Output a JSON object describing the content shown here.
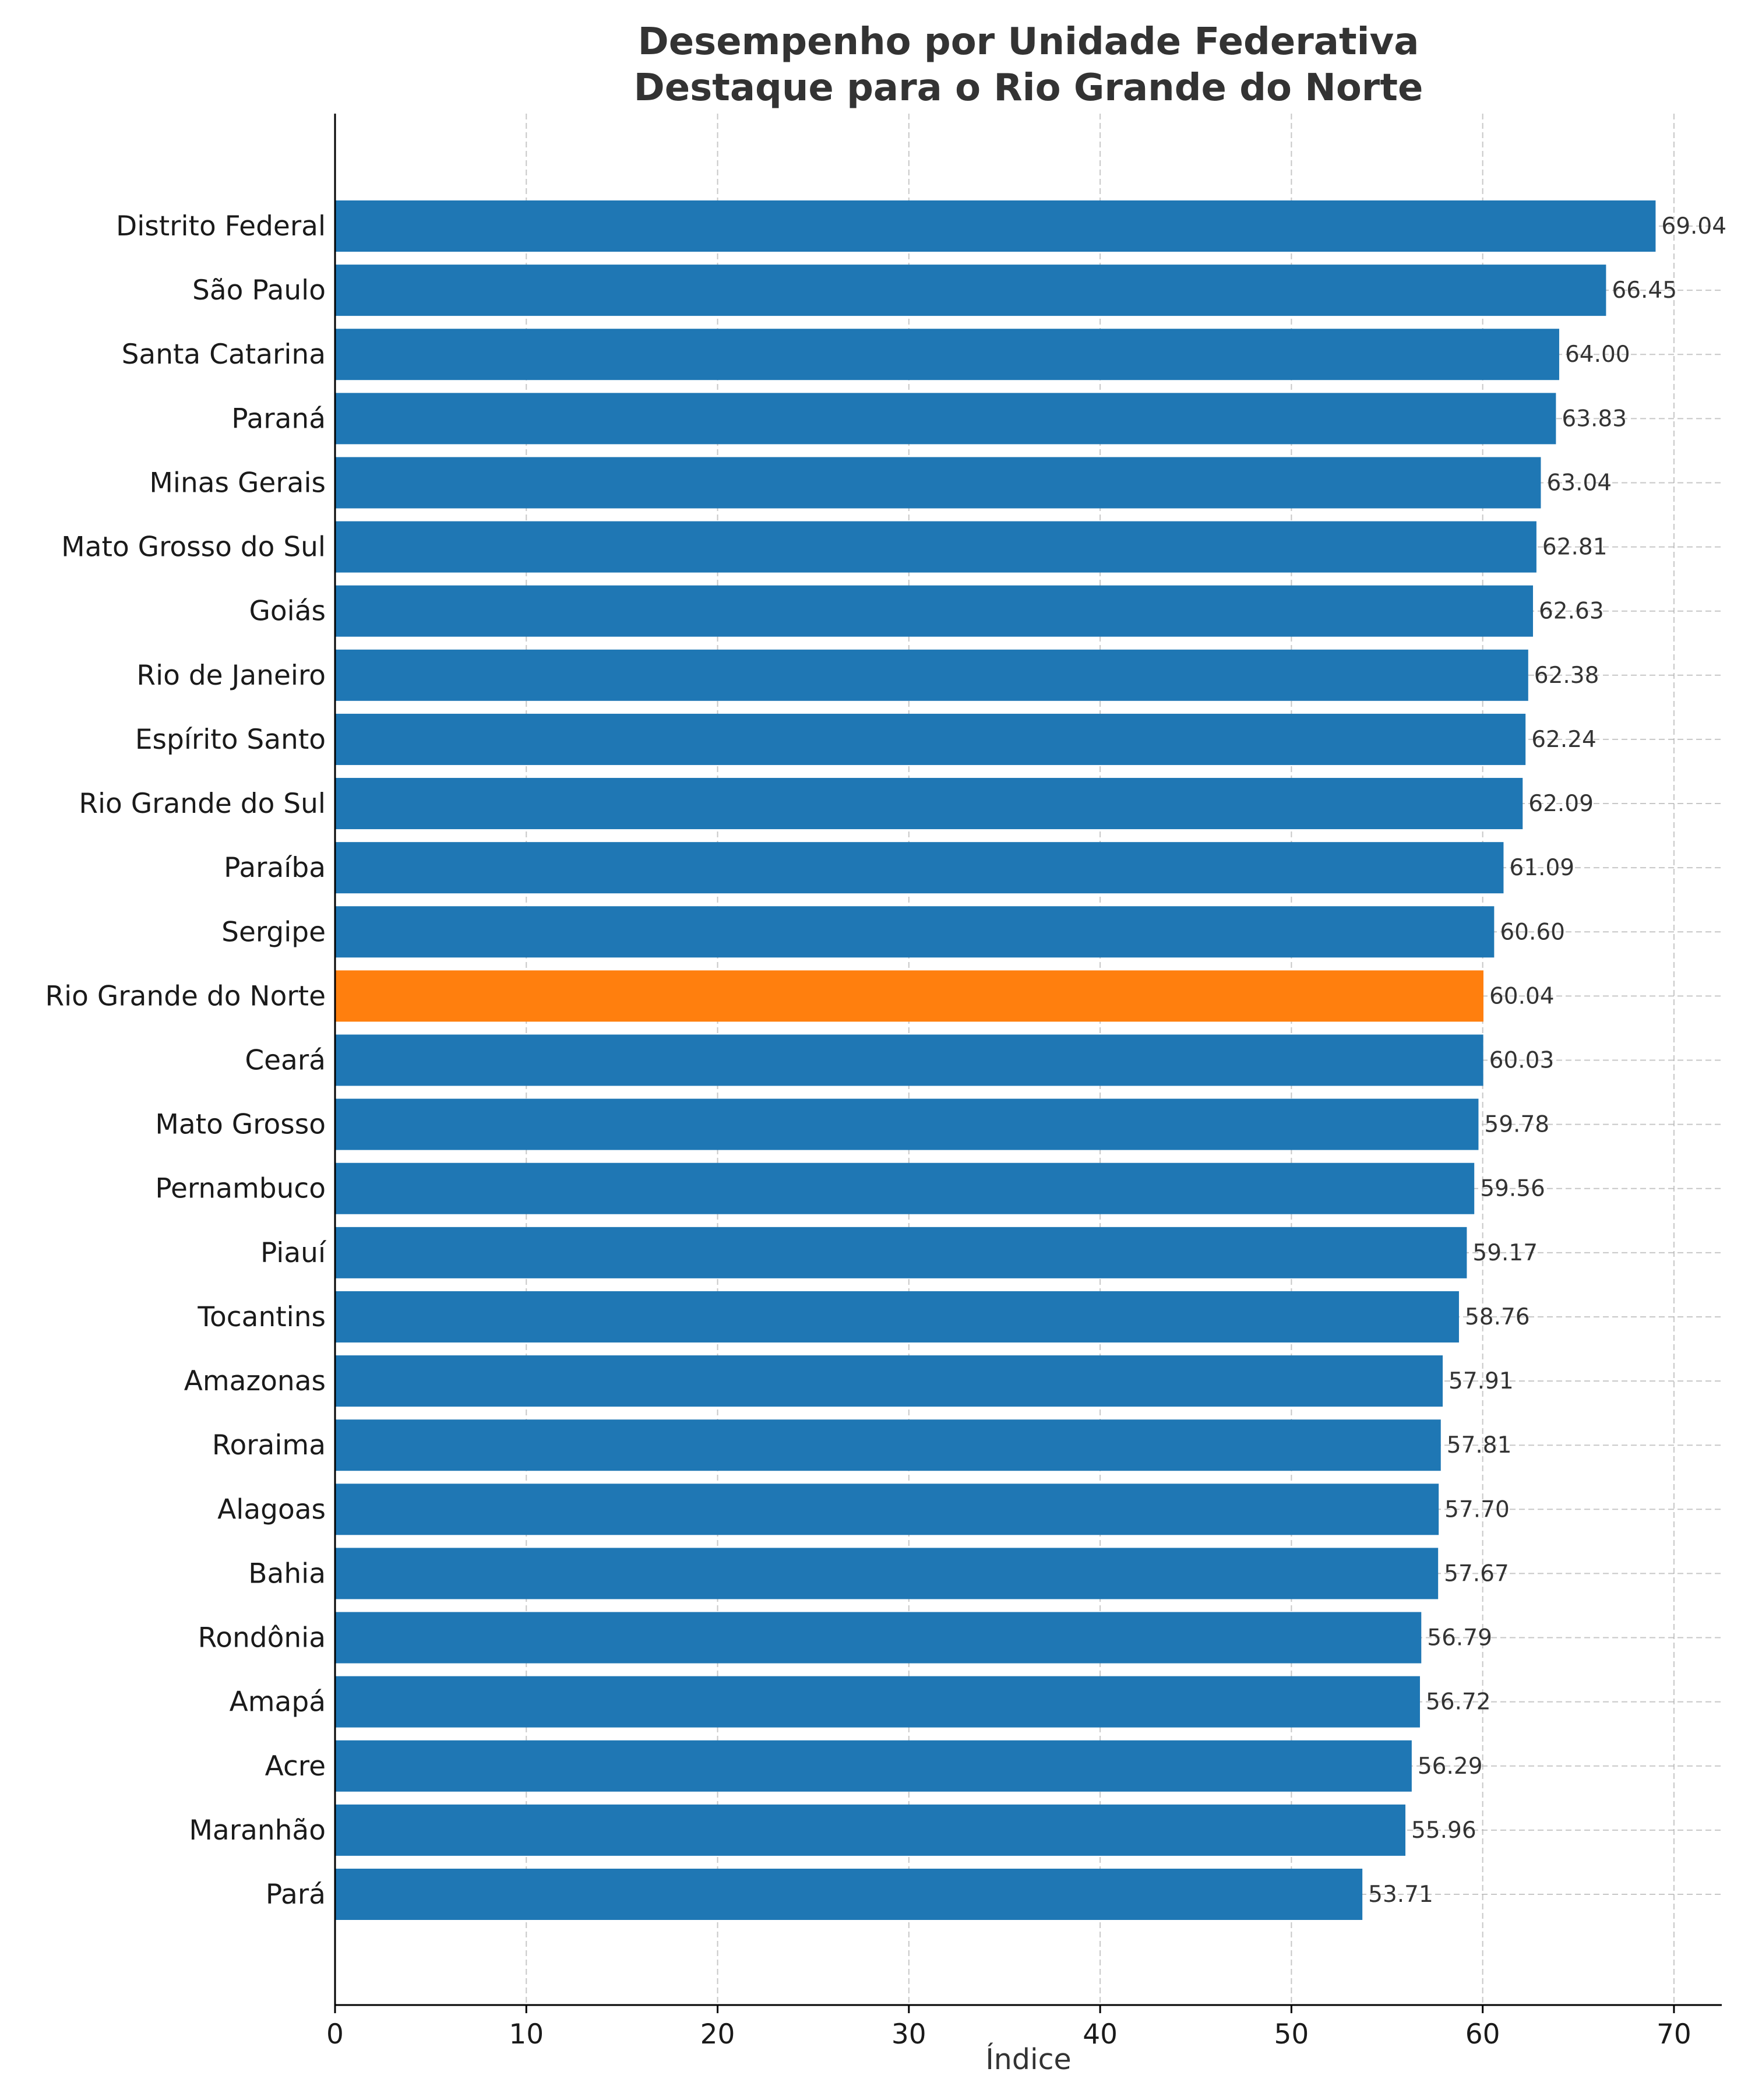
{
  "chart_data": {
    "type": "bar",
    "orientation": "horizontal",
    "title": "Desempenho por Unidade Federativa",
    "subtitle": "Destaque para o Rio Grande do Norte",
    "xlabel": "Índice",
    "ylabel": "",
    "xlim": [
      0,
      72.5
    ],
    "xticks": [
      0,
      10,
      20,
      30,
      40,
      50,
      60,
      70
    ],
    "grid": true,
    "colors": {
      "default": "#1f77b4",
      "highlight": "#ff7f0e"
    },
    "highlight": "Rio Grande do Norte",
    "categories": [
      "Distrito Federal",
      "São Paulo",
      "Santa Catarina",
      "Paraná",
      "Minas Gerais",
      "Mato Grosso do Sul",
      "Goiás",
      "Rio de Janeiro",
      "Espírito Santo",
      "Rio Grande do Sul",
      "Paraíba",
      "Sergipe",
      "Rio Grande do Norte",
      "Ceará",
      "Mato Grosso",
      "Pernambuco",
      "Piauí",
      "Tocantins",
      "Amazonas",
      "Roraima",
      "Alagoas",
      "Bahia",
      "Rondônia",
      "Amapá",
      "Acre",
      "Maranhão",
      "Pará"
    ],
    "values": [
      69.04,
      66.45,
      64.0,
      63.83,
      63.04,
      62.81,
      62.63,
      62.38,
      62.24,
      62.09,
      61.09,
      60.6,
      60.04,
      60.03,
      59.78,
      59.56,
      59.17,
      58.76,
      57.91,
      57.81,
      57.7,
      57.67,
      56.79,
      56.72,
      56.29,
      55.96,
      53.71
    ],
    "value_labels": [
      "69.04",
      "66.45",
      "64.00",
      "63.83",
      "63.04",
      "62.81",
      "62.63",
      "62.38",
      "62.24",
      "62.09",
      "61.09",
      "60.60",
      "60.04",
      "60.03",
      "59.78",
      "59.56",
      "59.17",
      "58.76",
      "57.91",
      "57.81",
      "57.70",
      "57.67",
      "56.79",
      "56.72",
      "56.29",
      "55.96",
      "53.71"
    ]
  }
}
